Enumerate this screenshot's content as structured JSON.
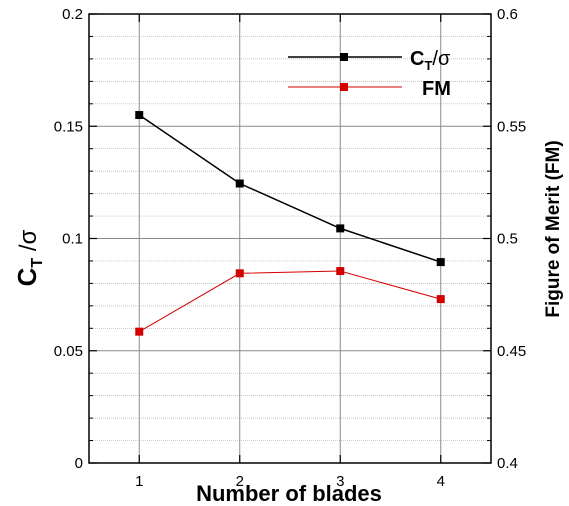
{
  "chart_data": {
    "type": "line",
    "x": [
      1,
      2,
      3,
      4
    ],
    "xlabel": "Number of blades",
    "xlim": [
      0.5,
      4.5
    ],
    "x_ticks": [
      "1",
      "2",
      "3",
      "4"
    ],
    "ylabel_left": {
      "main": "C",
      "sub": "T",
      "rest": " /σ"
    },
    "ylim_left": [
      0,
      0.2
    ],
    "y_ticks_left": [
      "0",
      "0.05",
      "0.1",
      "0.15",
      "0.2"
    ],
    "ylabel_right": "Figure of Merit (FM)",
    "ylim_right": [
      0.4,
      0.6
    ],
    "y_ticks_right": [
      "0.4",
      "0.45",
      "0.5",
      "0.55",
      "0.6"
    ],
    "grid": true,
    "legend_position": "top-right",
    "series": [
      {
        "name_main": "C",
        "name_sub": "T",
        "name_rest": "/σ",
        "axis": "left",
        "color": "#000000",
        "values": [
          0.155,
          0.1245,
          0.1045,
          0.0895
        ]
      },
      {
        "name": "FM",
        "axis": "right",
        "color": "#d40000",
        "values": [
          0.4585,
          0.4845,
          0.4855,
          0.473
        ]
      }
    ]
  }
}
